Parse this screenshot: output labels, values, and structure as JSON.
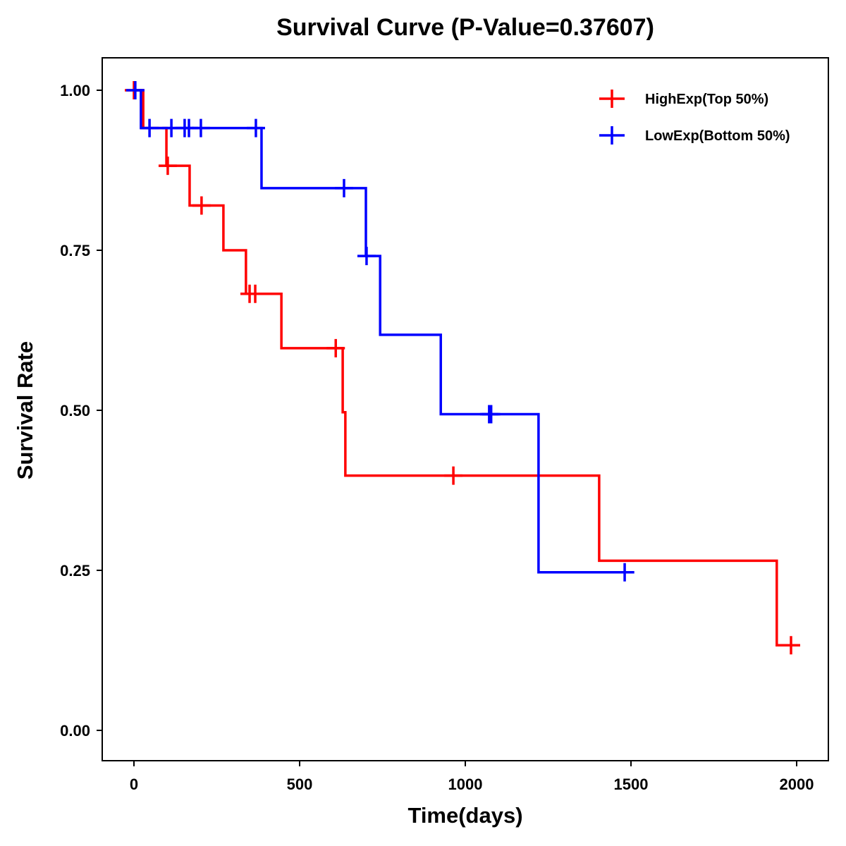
{
  "chart_data": {
    "type": "line",
    "title": "Survival Curve (P-Value=0.37607)",
    "xlabel": "Time(days)",
    "ylabel": "Survival Rate",
    "xlim": [
      -90,
      2090
    ],
    "ylim": [
      -0.05,
      1.05
    ],
    "xticks": [
      0,
      500,
      1000,
      1500,
      2000
    ],
    "xtick_labels": [
      "0",
      "500",
      "1000",
      "1500",
      "2000"
    ],
    "yticks": [
      0,
      0.25,
      0.5,
      0.75,
      1.0
    ],
    "ytick_labels": [
      "0.00",
      "0.25",
      "0.50",
      "0.75",
      "1.00"
    ],
    "grid": false,
    "legend_position": "top-right",
    "series": [
      {
        "name": "HighExp(Top 50%)",
        "color": "#FF0000",
        "steps": [
          [
            0,
            1.0
          ],
          [
            28,
            0.941
          ],
          [
            98,
            0.882
          ],
          [
            168,
            0.82
          ],
          [
            270,
            0.75
          ],
          [
            338,
            0.682
          ],
          [
            445,
            0.597
          ],
          [
            630,
            0.497
          ],
          [
            638,
            0.398
          ],
          [
            1404,
            0.265
          ],
          [
            1940,
            0.133
          ]
        ],
        "end": 2000,
        "censored": [
          [
            0,
            1.0
          ],
          [
            102,
            0.882
          ],
          [
            204,
            0.82
          ],
          [
            349,
            0.682
          ],
          [
            366,
            0.682
          ],
          [
            609,
            0.597
          ],
          [
            964,
            0.398
          ],
          [
            1983,
            0.133
          ]
        ]
      },
      {
        "name": "LowExp(Bottom 50%)",
        "color": "#0000FF",
        "steps": [
          [
            0,
            1.0
          ],
          [
            21,
            0.941
          ],
          [
            385,
            0.847
          ],
          [
            700,
            0.741
          ],
          [
            743,
            0.618
          ],
          [
            926,
            0.494
          ],
          [
            1221,
            0.247
          ]
        ],
        "end": 1510,
        "censored": [
          [
            4,
            1.0
          ],
          [
            47,
            0.941
          ],
          [
            113,
            0.941
          ],
          [
            153,
            0.941
          ],
          [
            166,
            0.941
          ],
          [
            202,
            0.941
          ],
          [
            368,
            0.941
          ],
          [
            634,
            0.847
          ],
          [
            702,
            0.741
          ],
          [
            1072,
            0.494
          ],
          [
            1078,
            0.494
          ],
          [
            1481,
            0.247
          ]
        ]
      }
    ]
  }
}
